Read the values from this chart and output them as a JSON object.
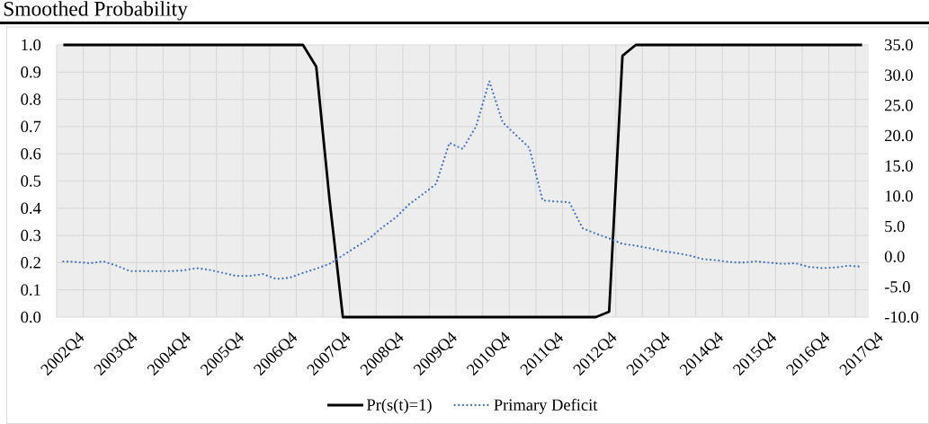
{
  "chart_data": {
    "type": "line",
    "title": "Smoothed Probability",
    "categories": [
      "2002Q4",
      null,
      null,
      null,
      "2003Q4",
      null,
      null,
      null,
      "2004Q4",
      null,
      null,
      null,
      "2005Q4",
      null,
      null,
      null,
      "2006Q4",
      null,
      null,
      null,
      "2007Q4",
      null,
      null,
      null,
      "2008Q4",
      null,
      null,
      null,
      "2009Q4",
      null,
      null,
      null,
      "2010Q4",
      null,
      null,
      null,
      "2011Q4",
      null,
      null,
      null,
      "2012Q4",
      null,
      null,
      null,
      "2013Q4",
      null,
      null,
      null,
      "2014Q4",
      null,
      null,
      null,
      "2015Q4",
      null,
      null,
      null,
      "2016Q4",
      null,
      null,
      null,
      "2017Q4"
    ],
    "series": [
      {
        "name": "Pr(s(t)=1)",
        "color": "#000000",
        "line_style": "solid",
        "values": [
          1.0,
          1.0,
          1.0,
          1.0,
          1.0,
          1.0,
          1.0,
          1.0,
          1.0,
          1.0,
          1.0,
          1.0,
          1.0,
          1.0,
          1.0,
          1.0,
          1.0,
          1.0,
          1.0,
          0.92,
          0.43,
          0.0,
          0.0,
          0.0,
          0.0,
          0.0,
          0.0,
          0.0,
          0.0,
          0.0,
          0.0,
          0.0,
          0.0,
          0.0,
          0.0,
          0.0,
          0.0,
          0.0,
          0.0,
          0.0,
          0.0,
          0.02,
          0.96,
          1.0,
          1.0,
          1.0,
          1.0,
          1.0,
          1.0,
          1.0,
          1.0,
          1.0,
          1.0,
          1.0,
          1.0,
          1.0,
          1.0,
          1.0,
          1.0,
          1.0,
          1.0
        ]
      },
      {
        "name": "Primary Deficit",
        "color": "#4472c4",
        "line_style": "dotted",
        "axis": "y2",
        "values": [
          -0.8,
          -0.9,
          -1.1,
          -0.8,
          -1.5,
          -2.4,
          -2.4,
          -2.4,
          -2.4,
          -2.3,
          -1.9,
          -2.2,
          -2.7,
          -3.2,
          -3.2,
          -2.9,
          -3.7,
          -3.5,
          -2.7,
          -2.0,
          -1.2,
          0.2,
          1.6,
          3.0,
          4.9,
          6.5,
          8.7,
          10.3,
          12.0,
          18.8,
          17.8,
          21.5,
          29.0,
          22.2,
          20.1,
          18.0,
          9.3,
          9.1,
          9.0,
          4.7,
          3.8,
          3.0,
          2.1,
          1.8,
          1.4,
          0.9,
          0.6,
          0.2,
          -0.4,
          -0.6,
          -0.9,
          -1.0,
          -0.8,
          -1.0,
          -1.2,
          -1.1,
          -1.7,
          -1.9,
          -1.8,
          -1.5,
          -1.7
        ]
      }
    ],
    "ylim": [
      0,
      1
    ],
    "yticks": [
      {
        "value": 0,
        "label": "0.0"
      },
      0.1,
      0.2,
      0.3,
      0.4,
      0.5,
      0.6,
      0.7,
      0.8,
      0.9,
      {
        "value": 1,
        "label": "1.0"
      }
    ],
    "y2lim": [
      -10,
      35
    ],
    "y2ticks": [
      {
        "value": -10,
        "label": "-10.0"
      },
      {
        "value": -5,
        "label": "-5.0"
      },
      {
        "value": 0,
        "label": "0.0"
      },
      {
        "value": 5,
        "label": "5.0"
      },
      {
        "value": 10,
        "label": "10.0"
      },
      {
        "value": 15,
        "label": "15.0"
      },
      {
        "value": 20,
        "label": "20.0"
      },
      {
        "value": 25,
        "label": "25.0"
      },
      {
        "value": 30,
        "label": "30.0"
      },
      {
        "value": 35,
        "label": "35.0"
      }
    ],
    "grid": true,
    "legend": "bottom",
    "marker": "none"
  }
}
